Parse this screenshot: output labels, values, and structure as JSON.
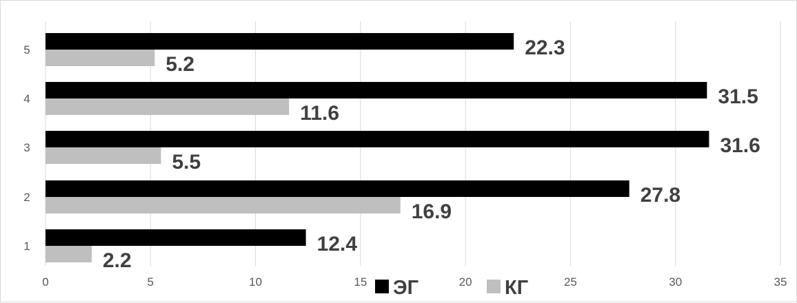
{
  "chart_data": {
    "type": "bar",
    "orientation": "horizontal",
    "categories": [
      "1",
      "2",
      "3",
      "4",
      "5"
    ],
    "series": [
      {
        "name": "ЭГ",
        "values": [
          12.4,
          27.8,
          31.6,
          31.5,
          22.3
        ],
        "value_labels": [
          "12.4",
          "27.8",
          "31.6",
          "31.5",
          "22.3"
        ],
        "color": "#000000"
      },
      {
        "name": "КГ",
        "values": [
          2.2,
          16.9,
          5.5,
          11.6,
          5.2
        ],
        "value_labels": [
          "2.2",
          "16.9",
          "5.5",
          "11.6",
          "5.2"
        ],
        "color": "#bfbfbf"
      }
    ],
    "x_ticks": [
      "0",
      "5",
      "10",
      "15",
      "20",
      "25",
      "30",
      "35"
    ],
    "xlim": [
      0,
      35
    ],
    "grid": "vertical",
    "legend_position": "bottom"
  }
}
